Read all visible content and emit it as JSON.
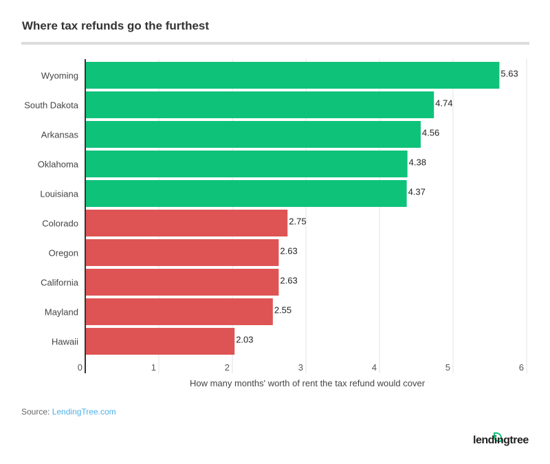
{
  "title": "Where tax refunds go the furthest",
  "source_label": "Source:",
  "source_link": "LendingTree.com",
  "logo_text": "lendingtree",
  "chart_data": {
    "type": "bar",
    "orientation": "horizontal",
    "categories": [
      "Wyoming",
      "South Dakota",
      "Arkansas",
      "Oklahoma",
      "Louisiana",
      "Colorado",
      "Oregon",
      "California",
      "Mayland",
      "Hawaii"
    ],
    "values": [
      5.63,
      4.74,
      4.56,
      4.38,
      4.37,
      2.75,
      2.63,
      2.63,
      2.55,
      2.03
    ],
    "colors": [
      "#0ec27a",
      "#0ec27a",
      "#0ec27a",
      "#0ec27a",
      "#0ec27a",
      "#de5454",
      "#de5454",
      "#de5454",
      "#de5454",
      "#de5454"
    ],
    "xlabel": "How many months' worth of rent the tax refund would cover",
    "xlim": [
      0,
      6
    ],
    "xticks": [
      "0",
      "1",
      "2",
      "3",
      "4",
      "5",
      "6"
    ],
    "grid": true
  }
}
